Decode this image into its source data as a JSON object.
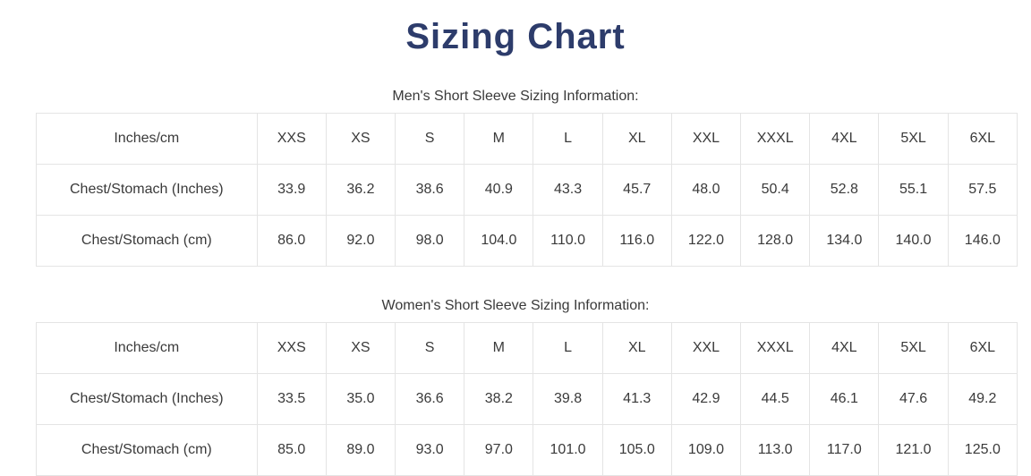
{
  "page": {
    "title": "Sizing Chart"
  },
  "colors": {
    "title": "#2d3c6b",
    "text": "#3a3a3a",
    "border": "#e4e4e4",
    "background": "#ffffff"
  },
  "tables": [
    {
      "caption": "Men's Short Sleeve Sizing Information:",
      "header": [
        "Inches/cm",
        "XXS",
        "XS",
        "S",
        "M",
        "L",
        "XL",
        "XXL",
        "XXXL",
        "4XL",
        "5XL",
        "6XL"
      ],
      "rows": [
        [
          "Chest/Stomach (Inches)",
          "33.9",
          "36.2",
          "38.6",
          "40.9",
          "43.3",
          "45.7",
          "48.0",
          "50.4",
          "52.8",
          "55.1",
          "57.5"
        ],
        [
          "Chest/Stomach (cm)",
          "86.0",
          "92.0",
          "98.0",
          "104.0",
          "110.0",
          "116.0",
          "122.0",
          "128.0",
          "134.0",
          "140.0",
          "146.0"
        ]
      ]
    },
    {
      "caption": "Women's Short Sleeve Sizing Information:",
      "header": [
        "Inches/cm",
        "XXS",
        "XS",
        "S",
        "M",
        "L",
        "XL",
        "XXL",
        "XXXL",
        "4XL",
        "5XL",
        "6XL"
      ],
      "rows": [
        [
          "Chest/Stomach (Inches)",
          "33.5",
          "35.0",
          "36.6",
          "38.2",
          "39.8",
          "41.3",
          "42.9",
          "44.5",
          "46.1",
          "47.6",
          "49.2"
        ],
        [
          "Chest/Stomach (cm)",
          "85.0",
          "89.0",
          "93.0",
          "97.0",
          "101.0",
          "105.0",
          "109.0",
          "113.0",
          "117.0",
          "121.0",
          "125.0"
        ]
      ]
    }
  ]
}
